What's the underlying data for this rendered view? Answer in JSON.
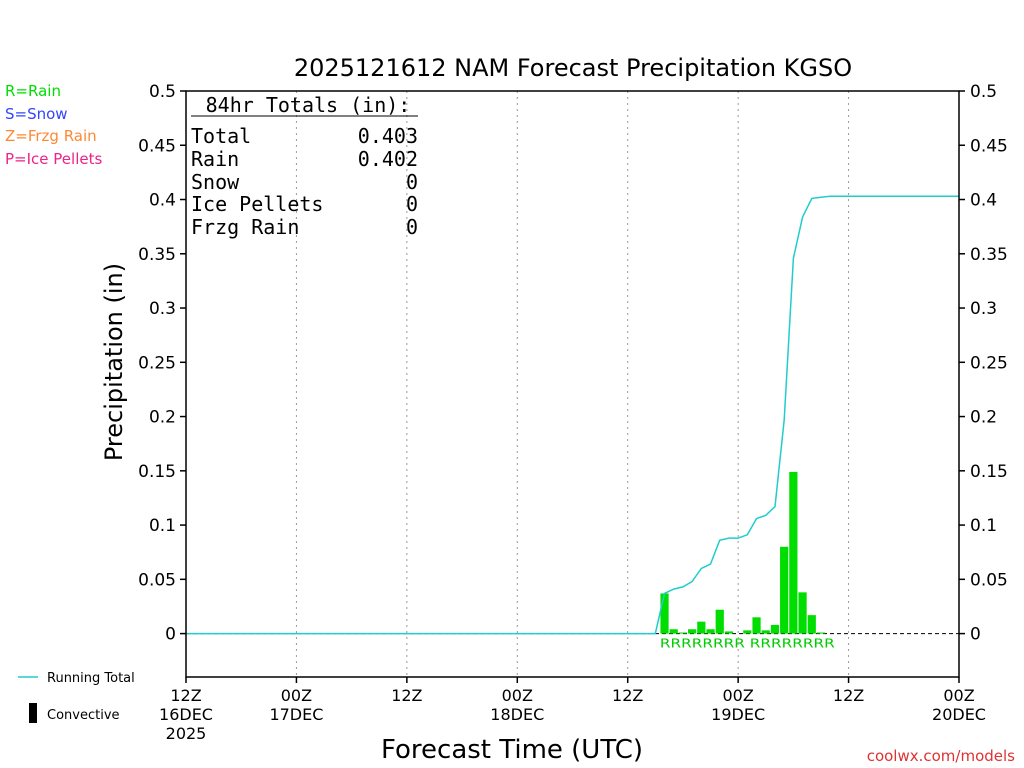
{
  "chart_data": {
    "type": "bar",
    "title": "2025121612 NAM Forecast Precipitation KGSO",
    "xlabel": "Forecast Time (UTC)",
    "ylabel": "Precipitation (in)",
    "ylim": [
      -0.04,
      0.5
    ],
    "xlim_hours": [
      0,
      84
    ],
    "y_ticks": [
      0,
      0.05,
      0.1,
      0.15,
      0.2,
      0.25,
      0.3,
      0.35,
      0.4,
      0.45,
      0.5
    ],
    "y_tick_labels": [
      "0",
      "0.05",
      "0.1",
      "0.15",
      "0.2",
      "0.25",
      "0.3",
      "0.35",
      "0.4",
      "0.45",
      "0.5"
    ],
    "x_ticks": [
      {
        "hour": 0,
        "time": "12Z",
        "date": "16DEC",
        "year": "2025"
      },
      {
        "hour": 12,
        "time": "00Z",
        "date": "17DEC",
        "year": ""
      },
      {
        "hour": 24,
        "time": "12Z",
        "date": "",
        "year": ""
      },
      {
        "hour": 36,
        "time": "00Z",
        "date": "18DEC",
        "year": ""
      },
      {
        "hour": 48,
        "time": "12Z",
        "date": "",
        "year": ""
      },
      {
        "hour": 60,
        "time": "00Z",
        "date": "19DEC",
        "year": ""
      },
      {
        "hour": 72,
        "time": "12Z",
        "date": "",
        "year": ""
      },
      {
        "hour": 84,
        "time": "00Z",
        "date": "20DEC",
        "year": ""
      }
    ],
    "bar_hours": [
      52,
      53,
      54,
      55,
      56,
      57,
      58,
      59,
      60,
      61,
      62,
      63,
      64,
      65,
      66,
      67,
      68,
      69,
      70
    ],
    "bar_values": [
      0.037,
      0.004,
      0.001,
      0.004,
      0.011,
      0.004,
      0.022,
      0.002,
      0.0,
      0.003,
      0.015,
      0.003,
      0.008,
      0.08,
      0.149,
      0.038,
      0.017,
      0.001,
      0.0
    ],
    "running_total": {
      "name": "Running Total",
      "hours": [
        0,
        51,
        52,
        53,
        54,
        55,
        56,
        57,
        58,
        59,
        60,
        61,
        62,
        63,
        64,
        65,
        66,
        67,
        68,
        69,
        70,
        84
      ],
      "values": [
        0,
        0,
        0.037,
        0.041,
        0.043,
        0.048,
        0.06,
        0.064,
        0.086,
        0.088,
        0.088,
        0.091,
        0.106,
        0.109,
        0.117,
        0.197,
        0.346,
        0.384,
        0.401,
        0.402,
        0.403,
        0.403
      ]
    },
    "ptype_labels": {
      "text": "RRRRRRRR RRRRRRRR",
      "from_hour": 51.5,
      "to_hour": 70.5
    }
  },
  "legend": {
    "rain": "R=Rain",
    "snow": "S=Snow",
    "frzg": "Z=Frzg Rain",
    "ice": "P=Ice Pellets",
    "running_total": "Running Total",
    "convective": "Convective"
  },
  "totals": {
    "header": "84hr Totals (in):",
    "rows": [
      {
        "label": "Total",
        "value": "0.403"
      },
      {
        "label": "Rain",
        "value": "0.402"
      },
      {
        "label": "Snow",
        "value": "0"
      },
      {
        "label": "Ice Pellets",
        "value": "0"
      },
      {
        "label": "Frzg Rain",
        "value": "0"
      }
    ]
  },
  "credit": "coolwx.com/models",
  "colors": {
    "rain": "#00dd00",
    "snow": "#3344ff",
    "frzg": "#ff8833",
    "ice": "#ee2288",
    "running_total": "#22cccc",
    "credit": "#dd3333",
    "grid": "#999999"
  }
}
